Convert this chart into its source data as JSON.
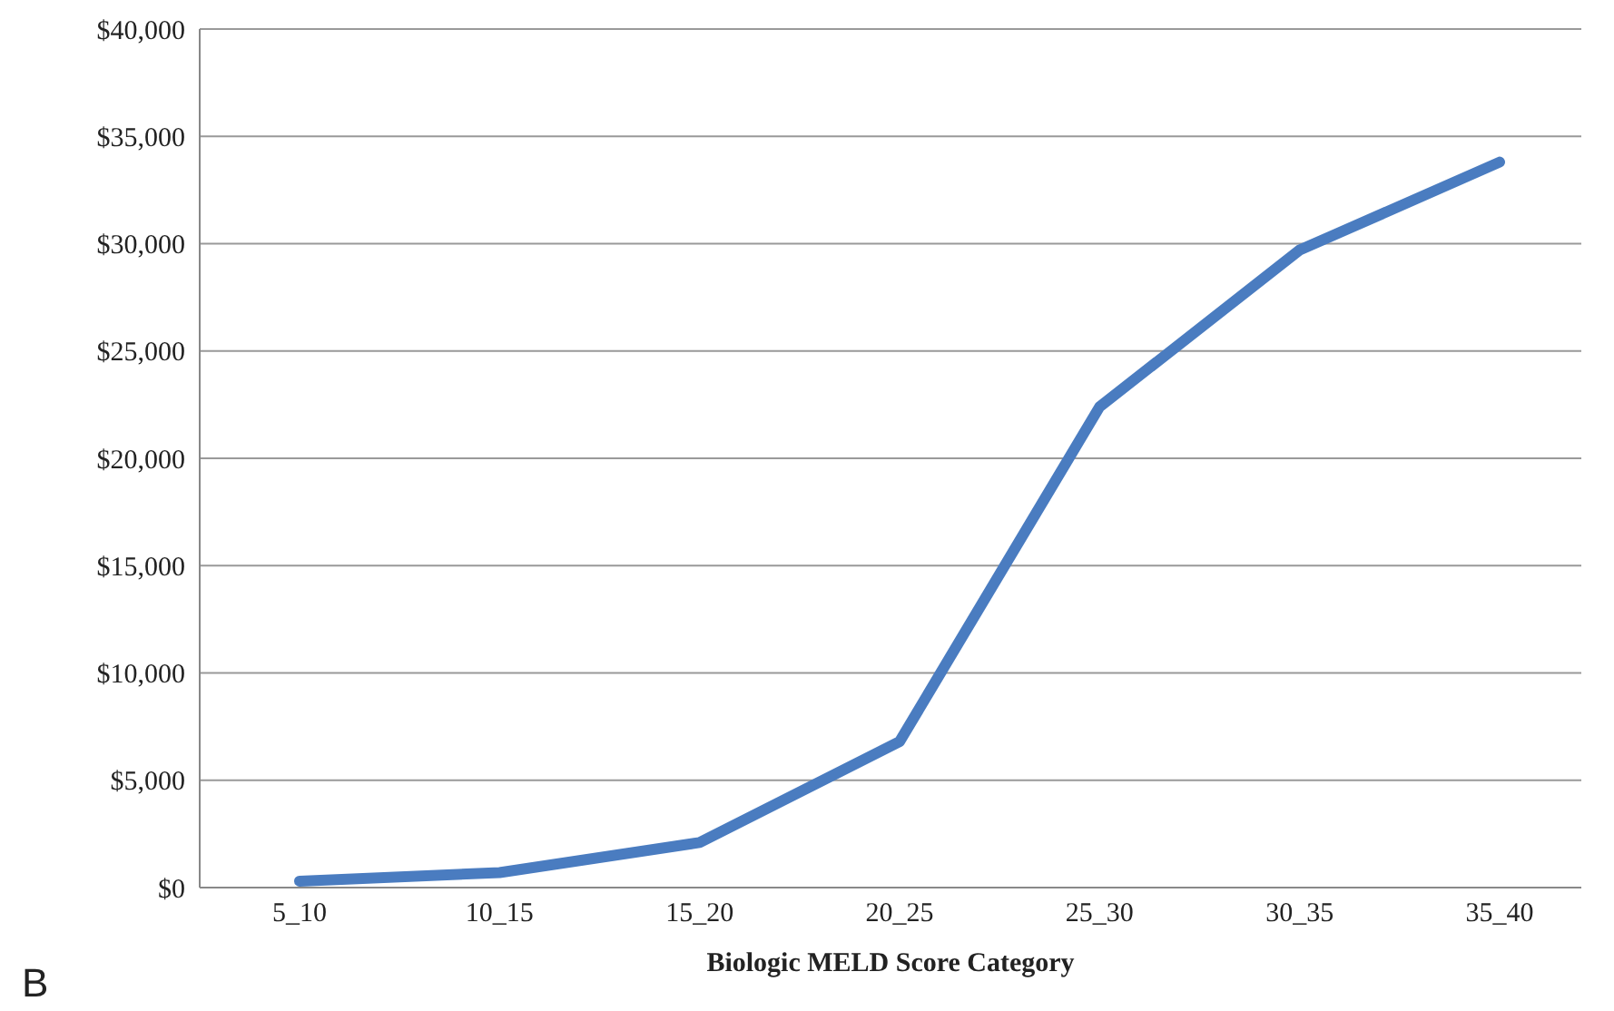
{
  "chart_data": {
    "type": "line",
    "xlabel": "Biologic MELD Score Category",
    "categories": [
      "5_10",
      "10_15",
      "15_20",
      "20_25",
      "25_30",
      "30_35",
      "35_40"
    ],
    "series": [
      {
        "color": "#4a7cc0",
        "values": [
          300,
          700,
          2100,
          6800,
          22400,
          29700,
          33800
        ]
      }
    ],
    "ylim": [
      0,
      40000
    ],
    "yticks": [
      {
        "value": 0,
        "label": "$0"
      },
      {
        "value": 5000,
        "label": "$5,000"
      },
      {
        "value": 10000,
        "label": "$10,000"
      },
      {
        "value": 15000,
        "label": "$15,000"
      },
      {
        "value": 20000,
        "label": "$20,000"
      },
      {
        "value": 25000,
        "label": "$25,000"
      },
      {
        "value": 30000,
        "label": "$30,000"
      },
      {
        "value": 35000,
        "label": "$35,000"
      },
      {
        "value": 40000,
        "label": "$40,000"
      }
    ],
    "grid": "y",
    "marker": "none",
    "line_style": "solid",
    "annotations": [
      "B"
    ]
  }
}
